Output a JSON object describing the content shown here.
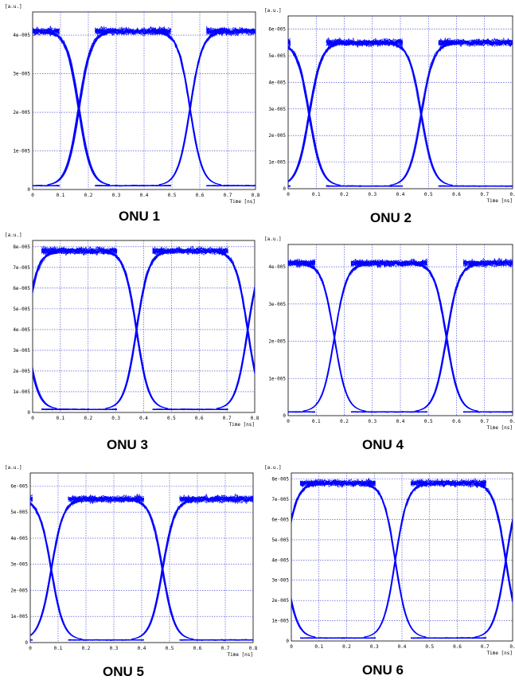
{
  "chart_data": [
    {
      "type": "line",
      "subtype": "eye-diagram",
      "caption": "ONU 1",
      "ylabel": "[a.u.]",
      "xlabel": "Time [ns]",
      "xlim": [
        0,
        0.8
      ],
      "ylim": [
        0,
        4.6e-05
      ],
      "x_ticks": [
        "0",
        "0.1",
        "0.2",
        "0.3",
        "0.4",
        "0.5",
        "0.6",
        "0.7",
        "0.8"
      ],
      "y_ticks": [
        {
          "v": 0,
          "t": "0"
        },
        {
          "v": 1e-05,
          "t": "1e-005"
        },
        {
          "v": 2e-05,
          "t": "2e-005"
        },
        {
          "v": 3e-05,
          "t": "3e-005"
        },
        {
          "v": 4e-05,
          "t": "4e-005"
        }
      ],
      "high_level": 4.1e-05,
      "low_level": 1e-06,
      "crossing_times": [
        0.165,
        0.565
      ],
      "crossing_level": 2e-05,
      "grid": true,
      "color": "#0000ff"
    },
    {
      "type": "line",
      "subtype": "eye-diagram",
      "caption": "ONU 2",
      "ylabel": "[a.u.]",
      "xlabel": "Time [ns]",
      "xlim": [
        0,
        0.8
      ],
      "ylim": [
        0,
        6.5e-05
      ],
      "x_ticks": [
        "0",
        "0.1",
        "0.2",
        "0.3",
        "0.4",
        "0.5",
        "0.6",
        "0.7",
        "0."
      ],
      "y_ticks": [
        {
          "v": 0,
          "t": "0"
        },
        {
          "v": 1e-05,
          "t": "1e-005"
        },
        {
          "v": 2e-05,
          "t": "2e-005"
        },
        {
          "v": 3e-05,
          "t": "3e-005"
        },
        {
          "v": 4e-05,
          "t": "4e-005"
        },
        {
          "v": 5e-05,
          "t": "5e-005"
        },
        {
          "v": 6e-05,
          "t": "6e-005"
        }
      ],
      "high_level": 5.5e-05,
      "low_level": 1e-06,
      "crossing_times": [
        0.075,
        0.475
      ],
      "crossing_level": 2.8e-05,
      "grid": true,
      "color": "#0000ff"
    },
    {
      "type": "line",
      "subtype": "eye-diagram",
      "caption": "ONU 3",
      "ylabel": "[a.u.]",
      "xlabel": "Time [ns]",
      "xlim": [
        0,
        0.8
      ],
      "ylim": [
        0,
        8.3e-05
      ],
      "x_ticks": [
        "0",
        "0.1",
        "0.2",
        "0.3",
        "0.4",
        "0.5",
        "0.6",
        "0.7",
        "0.8"
      ],
      "y_ticks": [
        {
          "v": 0,
          "t": "0"
        },
        {
          "v": 1e-05,
          "t": "1e-005"
        },
        {
          "v": 2e-05,
          "t": "2e-005"
        },
        {
          "v": 3e-05,
          "t": "3e-005"
        },
        {
          "v": 4e-05,
          "t": "4e-005"
        },
        {
          "v": 5e-05,
          "t": "5e-005"
        },
        {
          "v": 6e-05,
          "t": "6e-005"
        },
        {
          "v": 7e-05,
          "t": "7e-005"
        },
        {
          "v": 8e-05,
          "t": "8e-005"
        }
      ],
      "high_level": 7.8e-05,
      "low_level": 1.5e-06,
      "crossing_times": [
        -0.025,
        0.375,
        0.775
      ],
      "crossing_level": 3.8e-05,
      "grid": true,
      "color": "#0000ff"
    },
    {
      "type": "line",
      "subtype": "eye-diagram",
      "caption": "ONU 4",
      "ylabel": "[a.u.]",
      "xlabel": "Time [ns]",
      "xlim": [
        0,
        0.8
      ],
      "ylim": [
        0,
        4.6e-05
      ],
      "x_ticks": [
        "0",
        "0.1",
        "0.2",
        "0.3",
        "0.4",
        "0.5",
        "0.6",
        "0.7",
        "0."
      ],
      "y_ticks": [
        {
          "v": 0,
          "t": "0"
        },
        {
          "v": 1e-05,
          "t": "1e-005"
        },
        {
          "v": 2e-05,
          "t": "2e-005"
        },
        {
          "v": 3e-05,
          "t": "3e-005"
        },
        {
          "v": 4e-05,
          "t": "4e-005"
        }
      ],
      "high_level": 4.1e-05,
      "low_level": 1e-06,
      "crossing_times": [
        0.165,
        0.565
      ],
      "crossing_level": 2e-05,
      "grid": true,
      "color": "#0000ff"
    },
    {
      "type": "line",
      "subtype": "eye-diagram",
      "caption": "ONU 5",
      "ylabel": "[a.u.]",
      "xlabel": "Time [ns]",
      "xlim": [
        0,
        0.8
      ],
      "ylim": [
        0,
        6.5e-05
      ],
      "x_ticks": [
        "0",
        "0.1",
        "0.2",
        "0.3",
        "0.4",
        "0.5",
        "0.6",
        "0.7",
        "0.8"
      ],
      "y_ticks": [
        {
          "v": 0,
          "t": "0"
        },
        {
          "v": 1e-05,
          "t": "1e-005"
        },
        {
          "v": 2e-05,
          "t": "2e-005"
        },
        {
          "v": 3e-05,
          "t": "3e-005"
        },
        {
          "v": 4e-05,
          "t": "4e-005"
        },
        {
          "v": 5e-05,
          "t": "5e-005"
        },
        {
          "v": 6e-05,
          "t": "6e-005"
        }
      ],
      "high_level": 5.5e-05,
      "low_level": 1e-06,
      "crossing_times": [
        0.075,
        0.475
      ],
      "crossing_level": 2.8e-05,
      "grid": true,
      "color": "#0000ff"
    },
    {
      "type": "line",
      "subtype": "eye-diagram",
      "caption": "ONU 6",
      "ylabel": "[a.u.]",
      "xlabel": "Time [ns]",
      "xlim": [
        0,
        0.8
      ],
      "ylim": [
        0,
        8.3e-05
      ],
      "x_ticks": [
        "0",
        "0.1",
        "0.2",
        "0.3",
        "0.4",
        "0.5",
        "0.6",
        "0.7",
        "0."
      ],
      "y_ticks": [
        {
          "v": 0,
          "t": "0"
        },
        {
          "v": 1e-05,
          "t": "1e-005"
        },
        {
          "v": 2e-05,
          "t": "2e-005"
        },
        {
          "v": 3e-05,
          "t": "3e-005"
        },
        {
          "v": 4e-05,
          "t": "4e-005"
        },
        {
          "v": 5e-05,
          "t": "5e-005"
        },
        {
          "v": 6e-05,
          "t": "6e-005"
        },
        {
          "v": 7e-05,
          "t": "7e-005"
        },
        {
          "v": 8e-05,
          "t": "8e-005"
        }
      ],
      "high_level": 7.8e-05,
      "low_level": 1.5e-06,
      "crossing_times": [
        -0.025,
        0.375,
        0.775
      ],
      "crossing_level": 3.8e-05,
      "grid": true,
      "color": "#0000ff"
    }
  ]
}
